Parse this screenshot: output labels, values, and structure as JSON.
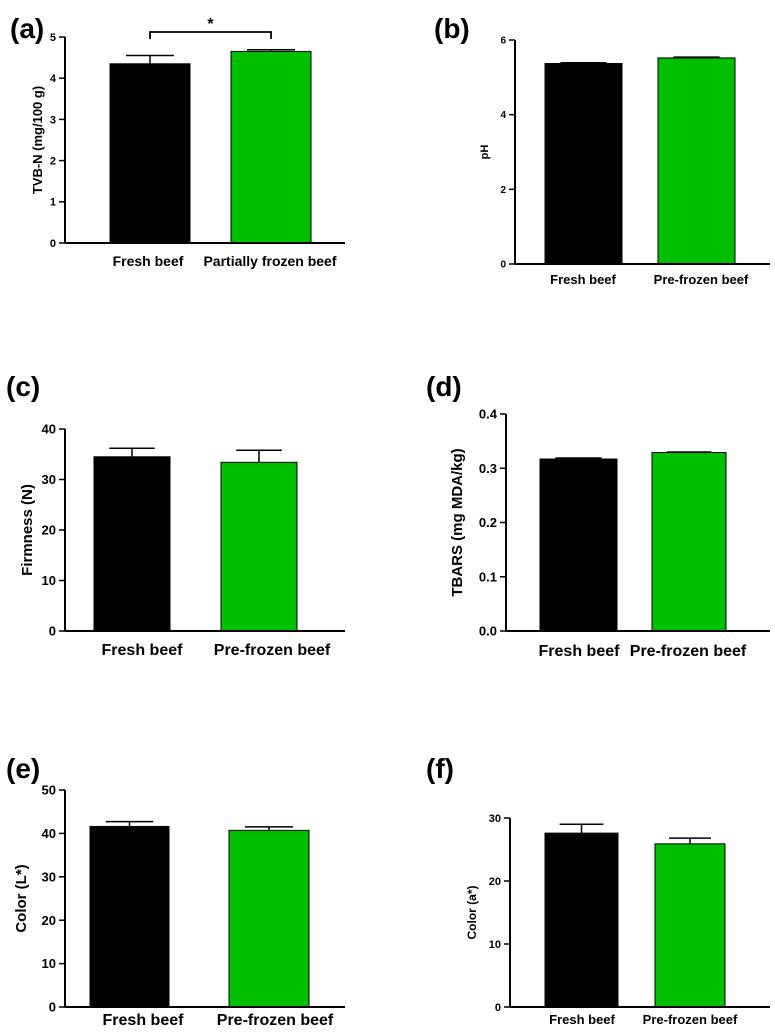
{
  "figure": {
    "colors": {
      "fresh": "#000000",
      "frozen": "#00bf00",
      "axis": "#000000"
    }
  },
  "chart_data": [
    {
      "panel": "(a)",
      "type": "bar",
      "categories": [
        "Fresh beef",
        "Partially frozen beef"
      ],
      "values": [
        4.35,
        4.65
      ],
      "errors": [
        0.2,
        0.04
      ],
      "ylabel": "TVB-N (mg/100 g)",
      "ylim": [
        0,
        5
      ],
      "yticks": [
        "0",
        "1",
        "2",
        "3",
        "4",
        "5"
      ],
      "significance": "*"
    },
    {
      "panel": "(b)",
      "type": "bar",
      "categories": [
        "Fresh beef",
        "Pre-frozen beef"
      ],
      "values": [
        5.37,
        5.52
      ],
      "errors": [
        0.02,
        0.02
      ],
      "ylabel": "pH",
      "ylim": [
        0,
        6
      ],
      "yticks": [
        "0",
        "2",
        "4",
        "6"
      ]
    },
    {
      "panel": "(c)",
      "type": "bar",
      "categories": [
        "Fresh beef",
        "Pre-frozen beef"
      ],
      "values": [
        34.5,
        33.4
      ],
      "errors": [
        1.7,
        2.4
      ],
      "ylabel": "Firmness (N)",
      "ylim": [
        0,
        40
      ],
      "yticks": [
        "0",
        "10",
        "20",
        "30",
        "40"
      ]
    },
    {
      "panel": "(d)",
      "type": "bar",
      "categories": [
        "Fresh beef",
        "Pre-frozen beef"
      ],
      "values": [
        0.317,
        0.329
      ],
      "errors": [
        0.002,
        0.001
      ],
      "ylabel": "TBARS (mg MDA/kg)",
      "ylim": [
        0,
        0.4
      ],
      "yticks": [
        "0.0",
        "0.1",
        "0.2",
        "0.3",
        "0.4"
      ]
    },
    {
      "panel": "(e)",
      "type": "bar",
      "categories": [
        "Fresh beef",
        "Pre-frozen beef"
      ],
      "values": [
        41.6,
        40.7
      ],
      "errors": [
        1.1,
        0.8
      ],
      "ylabel": "Color (L*)",
      "ylim": [
        0,
        50
      ],
      "yticks": [
        "0",
        "10",
        "20",
        "30",
        "40",
        "50"
      ]
    },
    {
      "panel": "(f)",
      "type": "bar",
      "categories": [
        "Fresh beef",
        "Pre-frozen beef"
      ],
      "values": [
        27.6,
        25.9
      ],
      "errors": [
        1.4,
        0.9
      ],
      "ylabel": "Color (a*)",
      "ylim": [
        0,
        30
      ],
      "yticks": [
        "0",
        "10",
        "20",
        "30"
      ]
    }
  ]
}
